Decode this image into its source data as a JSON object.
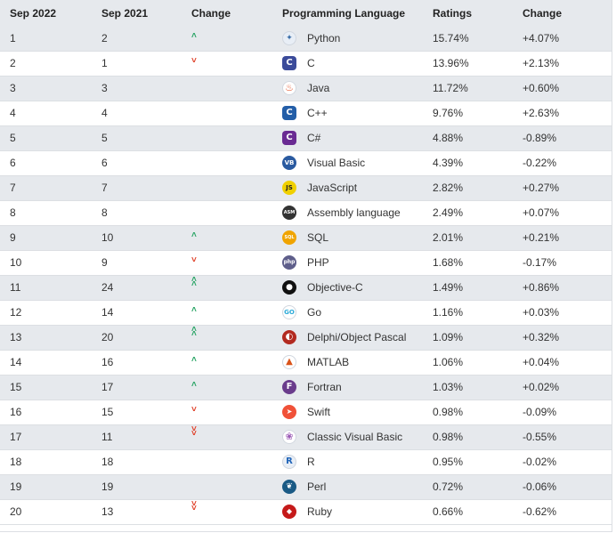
{
  "header": {
    "sep_2022": "Sep 2022",
    "sep_2021": "Sep 2021",
    "change": "Change",
    "language": "Programming Language",
    "ratings": "Ratings",
    "change_pct": "Change"
  },
  "colors": {
    "up": "#2aa566",
    "down": "#e0422b",
    "stripe": "#e6e9ed"
  },
  "rows": [
    {
      "cur": "1",
      "prev": "2",
      "trend": "up",
      "icon": "python-icon",
      "lang": "Python",
      "rating": "15.74%",
      "delta": "+4.07%"
    },
    {
      "cur": "2",
      "prev": "1",
      "trend": "down",
      "icon": "c-icon",
      "lang": "C",
      "rating": "13.96%",
      "delta": "+2.13%"
    },
    {
      "cur": "3",
      "prev": "3",
      "trend": "none",
      "icon": "java-icon",
      "lang": "Java",
      "rating": "11.72%",
      "delta": "+0.60%"
    },
    {
      "cur": "4",
      "prev": "4",
      "trend": "none",
      "icon": "cplusplus-icon",
      "lang": "C++",
      "rating": "9.76%",
      "delta": "+2.63%"
    },
    {
      "cur": "5",
      "prev": "5",
      "trend": "none",
      "icon": "csharp-icon",
      "lang": "C#",
      "rating": "4.88%",
      "delta": "-0.89%"
    },
    {
      "cur": "6",
      "prev": "6",
      "trend": "none",
      "icon": "visual-basic-icon",
      "lang": "Visual Basic",
      "rating": "4.39%",
      "delta": "-0.22%"
    },
    {
      "cur": "7",
      "prev": "7",
      "trend": "none",
      "icon": "javascript-icon",
      "lang": "JavaScript",
      "rating": "2.82%",
      "delta": "+0.27%"
    },
    {
      "cur": "8",
      "prev": "8",
      "trend": "none",
      "icon": "assembly-icon",
      "lang": "Assembly language",
      "rating": "2.49%",
      "delta": "+0.07%"
    },
    {
      "cur": "9",
      "prev": "10",
      "trend": "up",
      "icon": "sql-icon",
      "lang": "SQL",
      "rating": "2.01%",
      "delta": "+0.21%"
    },
    {
      "cur": "10",
      "prev": "9",
      "trend": "down",
      "icon": "php-icon",
      "lang": "PHP",
      "rating": "1.68%",
      "delta": "-0.17%"
    },
    {
      "cur": "11",
      "prev": "24",
      "trend": "up2",
      "icon": "objective-c-icon",
      "lang": "Objective-C",
      "rating": "1.49%",
      "delta": "+0.86%"
    },
    {
      "cur": "12",
      "prev": "14",
      "trend": "up",
      "icon": "go-icon",
      "lang": "Go",
      "rating": "1.16%",
      "delta": "+0.03%"
    },
    {
      "cur": "13",
      "prev": "20",
      "trend": "up2",
      "icon": "delphi-icon",
      "lang": "Delphi/Object Pascal",
      "rating": "1.09%",
      "delta": "+0.32%"
    },
    {
      "cur": "14",
      "prev": "16",
      "trend": "up",
      "icon": "matlab-icon",
      "lang": "MATLAB",
      "rating": "1.06%",
      "delta": "+0.04%"
    },
    {
      "cur": "15",
      "prev": "17",
      "trend": "up",
      "icon": "fortran-icon",
      "lang": "Fortran",
      "rating": "1.03%",
      "delta": "+0.02%"
    },
    {
      "cur": "16",
      "prev": "15",
      "trend": "down",
      "icon": "swift-icon",
      "lang": "Swift",
      "rating": "0.98%",
      "delta": "-0.09%"
    },
    {
      "cur": "17",
      "prev": "11",
      "trend": "down2",
      "icon": "classic-visual-basic-icon",
      "lang": "Classic Visual Basic",
      "rating": "0.98%",
      "delta": "-0.55%"
    },
    {
      "cur": "18",
      "prev": "18",
      "trend": "none",
      "icon": "r-icon",
      "lang": "R",
      "rating": "0.95%",
      "delta": "-0.02%"
    },
    {
      "cur": "19",
      "prev": "19",
      "trend": "none",
      "icon": "perl-icon",
      "lang": "Perl",
      "rating": "0.72%",
      "delta": "-0.06%"
    },
    {
      "cur": "20",
      "prev": "13",
      "trend": "down2",
      "icon": "ruby-icon",
      "lang": "Ruby",
      "rating": "0.66%",
      "delta": "-0.62%"
    }
  ]
}
